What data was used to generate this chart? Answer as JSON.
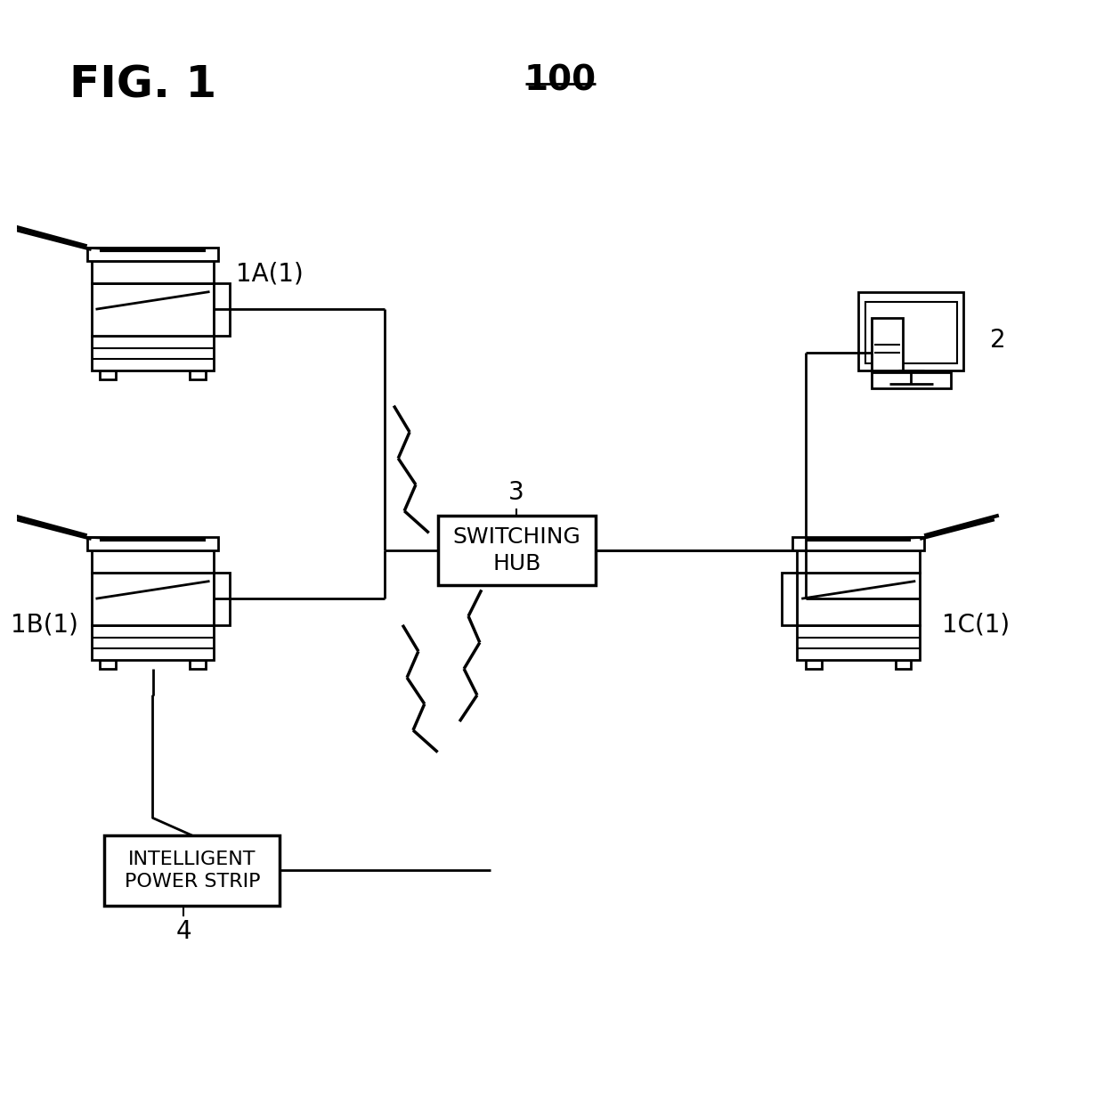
{
  "fig_label": "FIG. 1",
  "title_label": "100",
  "bg_color": "#ffffff",
  "line_color": "#000000",
  "hub_label": "SWITCHING\nHUB",
  "hub_id": "3",
  "power_strip_label": "INTELLIGENT\nPOWER STRIP",
  "power_strip_id": "4",
  "printer_1a_label": "1A(1)",
  "printer_1b_label": "1B(1)",
  "printer_1c_label": "1C(1)",
  "computer_label": "2"
}
